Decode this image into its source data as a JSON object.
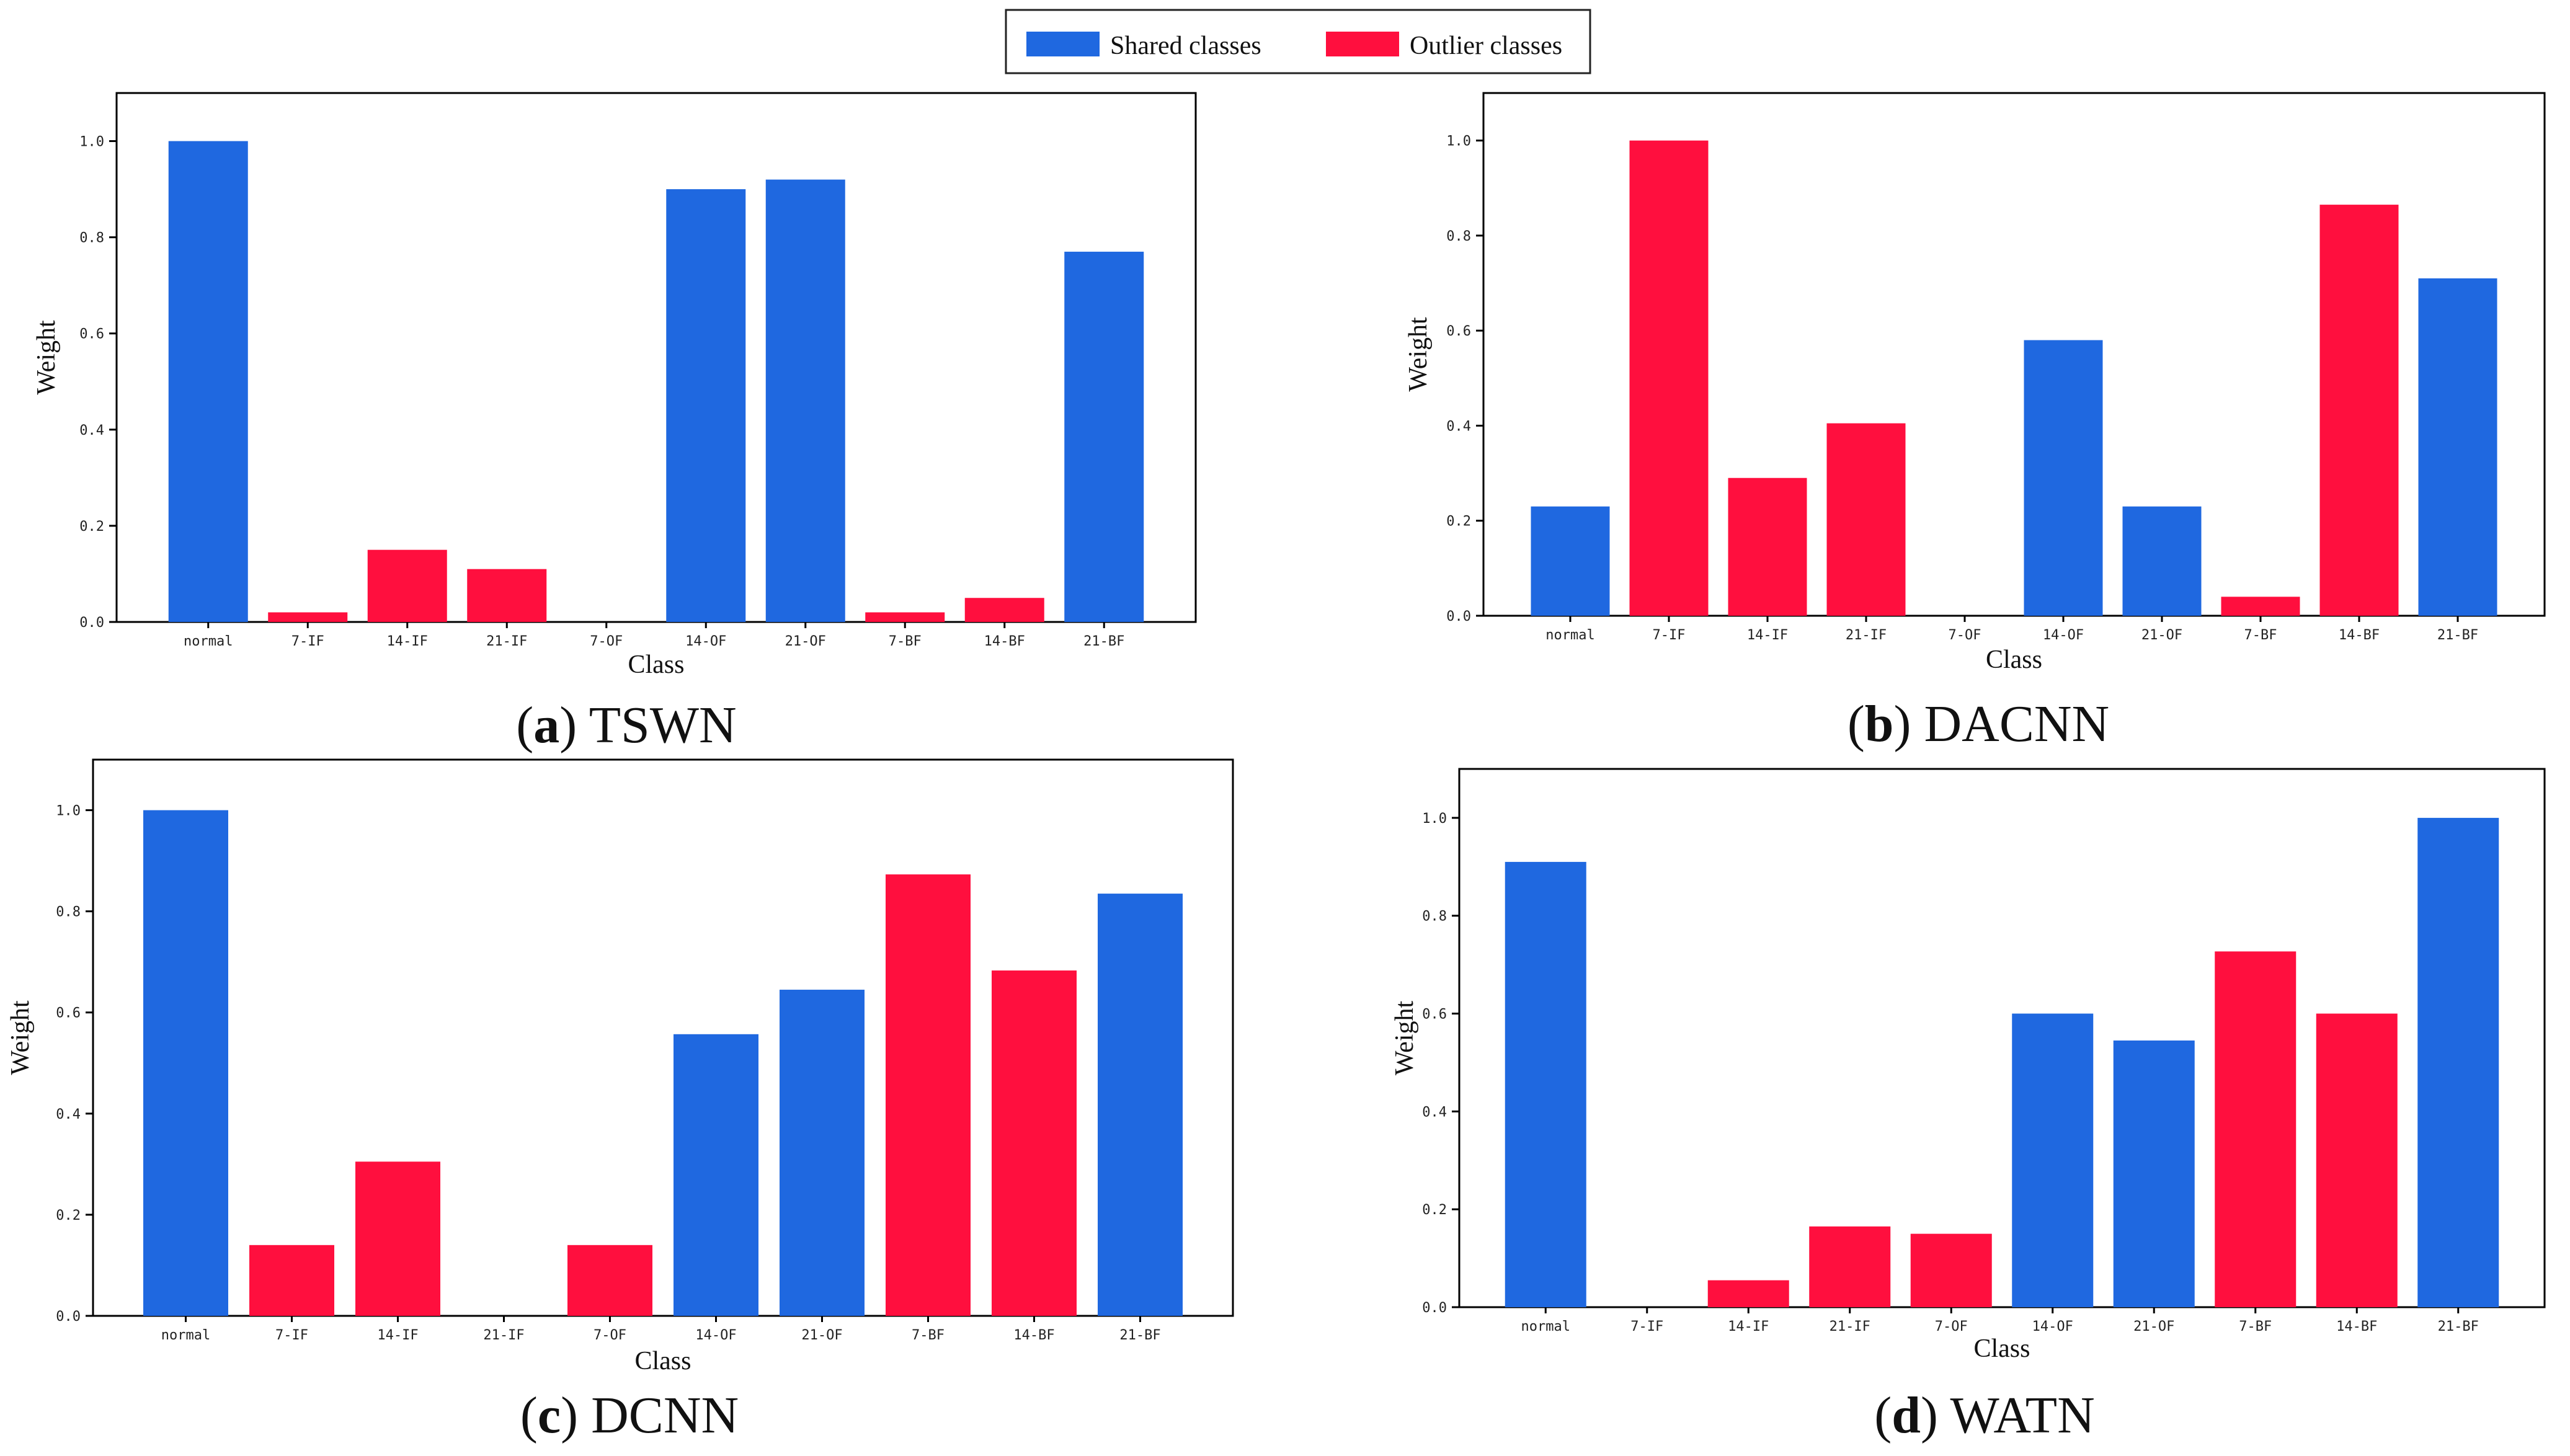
{
  "colors": {
    "shared": "#1f68e0",
    "outlier": "#ff0f3e"
  },
  "legend": {
    "items": [
      {
        "label": "Shared classes",
        "color": "#1f68e0"
      },
      {
        "label": "Outlier classes",
        "color": "#ff0f3e"
      }
    ]
  },
  "chart_data": [
    {
      "type": "bar",
      "panel": "a",
      "caption_letter": "a",
      "caption_model": "TSWN",
      "xlabel": "Class",
      "ylabel": "Weight",
      "ylim": [
        0,
        1.1
      ],
      "yticks": [
        "0.0",
        "0.2",
        "0.4",
        "0.6",
        "0.8",
        "1.0"
      ],
      "categories": [
        "normal",
        "7-IF",
        "14-IF",
        "21-IF",
        "7-OF",
        "14-OF",
        "21-OF",
        "7-BF",
        "14-BF",
        "21-BF"
      ],
      "values": [
        1.0,
        0.02,
        0.15,
        0.11,
        0.0,
        0.9,
        0.92,
        0.02,
        0.05,
        0.77
      ],
      "groups": [
        "shared",
        "outlier",
        "outlier",
        "outlier",
        "outlier",
        "shared",
        "shared",
        "outlier",
        "outlier",
        "shared"
      ]
    },
    {
      "type": "bar",
      "panel": "b",
      "caption_letter": "b",
      "caption_model": "DACNN",
      "xlabel": "Class",
      "ylabel": "Weight",
      "ylim": [
        0,
        1.1
      ],
      "yticks": [
        "0.0",
        "0.2",
        "0.4",
        "0.6",
        "0.8",
        "1.0"
      ],
      "categories": [
        "normal",
        "7-IF",
        "14-IF",
        "21-IF",
        "7-OF",
        "14-OF",
        "21-OF",
        "7-BF",
        "14-BF",
        "21-BF"
      ],
      "values": [
        0.23,
        1.0,
        0.29,
        0.405,
        0.0,
        0.58,
        0.23,
        0.04,
        0.865,
        0.71
      ],
      "groups": [
        "shared",
        "outlier",
        "outlier",
        "outlier",
        "outlier",
        "shared",
        "shared",
        "outlier",
        "outlier",
        "shared"
      ]
    },
    {
      "type": "bar",
      "panel": "c",
      "caption_letter": "c",
      "caption_model": "DCNN",
      "xlabel": "Class",
      "ylabel": "Weight",
      "ylim": [
        0,
        1.1
      ],
      "yticks": [
        "0.0",
        "0.2",
        "0.4",
        "0.6",
        "0.8",
        "1.0"
      ],
      "categories": [
        "normal",
        "7-IF",
        "14-IF",
        "21-IF",
        "7-OF",
        "14-OF",
        "21-OF",
        "7-BF",
        "14-BF",
        "21-BF"
      ],
      "values": [
        1.0,
        0.14,
        0.305,
        0.0,
        0.14,
        0.557,
        0.645,
        0.873,
        0.683,
        0.835
      ],
      "groups": [
        "shared",
        "outlier",
        "outlier",
        "outlier",
        "outlier",
        "shared",
        "shared",
        "outlier",
        "outlier",
        "shared"
      ]
    },
    {
      "type": "bar",
      "panel": "d",
      "caption_letter": "d",
      "caption_model": "WATN",
      "xlabel": "Class",
      "ylabel": "Weight",
      "ylim": [
        0,
        1.1
      ],
      "yticks": [
        "0.0",
        "0.2",
        "0.4",
        "0.6",
        "0.8",
        "1.0"
      ],
      "categories": [
        "normal",
        "7-IF",
        "14-IF",
        "21-IF",
        "7-OF",
        "14-OF",
        "21-OF",
        "7-BF",
        "14-BF",
        "21-BF"
      ],
      "values": [
        0.91,
        0.0,
        0.055,
        0.165,
        0.15,
        0.6,
        0.545,
        0.727,
        0.6,
        1.0
      ],
      "groups": [
        "shared",
        "outlier",
        "outlier",
        "outlier",
        "outlier",
        "shared",
        "shared",
        "outlier",
        "outlier",
        "shared"
      ]
    }
  ]
}
